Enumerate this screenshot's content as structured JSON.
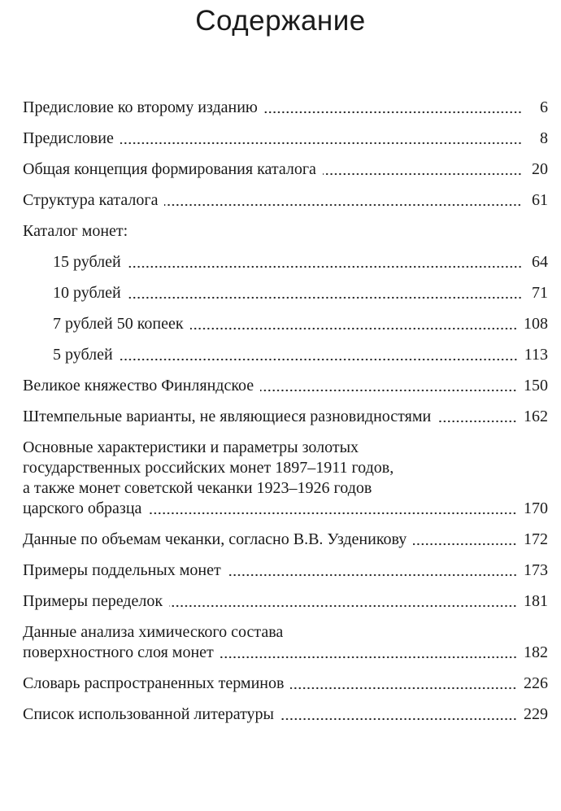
{
  "title": "Содержание",
  "entries": [
    {
      "lines": [
        "Предисловие ко второму изданию"
      ],
      "page": "6"
    },
    {
      "lines": [
        "Предисловие"
      ],
      "page": "8"
    },
    {
      "lines": [
        "Общая концепция формирования каталога"
      ],
      "page": "20"
    },
    {
      "lines": [
        "Структура каталога"
      ],
      "page": "61"
    },
    {
      "lines": [
        "Каталог монет:"
      ],
      "page": ""
    },
    {
      "lines": [
        "15 рублей"
      ],
      "page": "64",
      "sub": true
    },
    {
      "lines": [
        "10 рублей"
      ],
      "page": "71",
      "sub": true
    },
    {
      "lines": [
        "7 рублей 50 копеек"
      ],
      "page": "108",
      "sub": true
    },
    {
      "lines": [
        "5 рублей"
      ],
      "page": "113",
      "sub": true
    },
    {
      "lines": [
        "Великое княжество Финляндское"
      ],
      "page": "150"
    },
    {
      "lines": [
        "Штемпельные варианты, не являющиеся разновидностями"
      ],
      "page": "162"
    },
    {
      "lines": [
        "Основные характеристики и параметры золотых",
        "государственных российских монет 1897–1911 годов,",
        "а также монет советской чеканки 1923–1926 годов",
        "царского образца"
      ],
      "page": "170"
    },
    {
      "lines": [
        "Данные по объемам чеканки, согласно В.В. Узденикову"
      ],
      "page": "172"
    },
    {
      "lines": [
        "Примеры поддельных монет"
      ],
      "page": "173"
    },
    {
      "lines": [
        "Примеры переделок"
      ],
      "page": "181"
    },
    {
      "lines": [
        "Данные анализа химического состава",
        "поверхностного слоя монет"
      ],
      "page": "182"
    },
    {
      "lines": [
        "Словарь распространенных терминов"
      ],
      "page": "226"
    },
    {
      "lines": [
        "Список использованной литературы"
      ],
      "page": "229"
    }
  ]
}
